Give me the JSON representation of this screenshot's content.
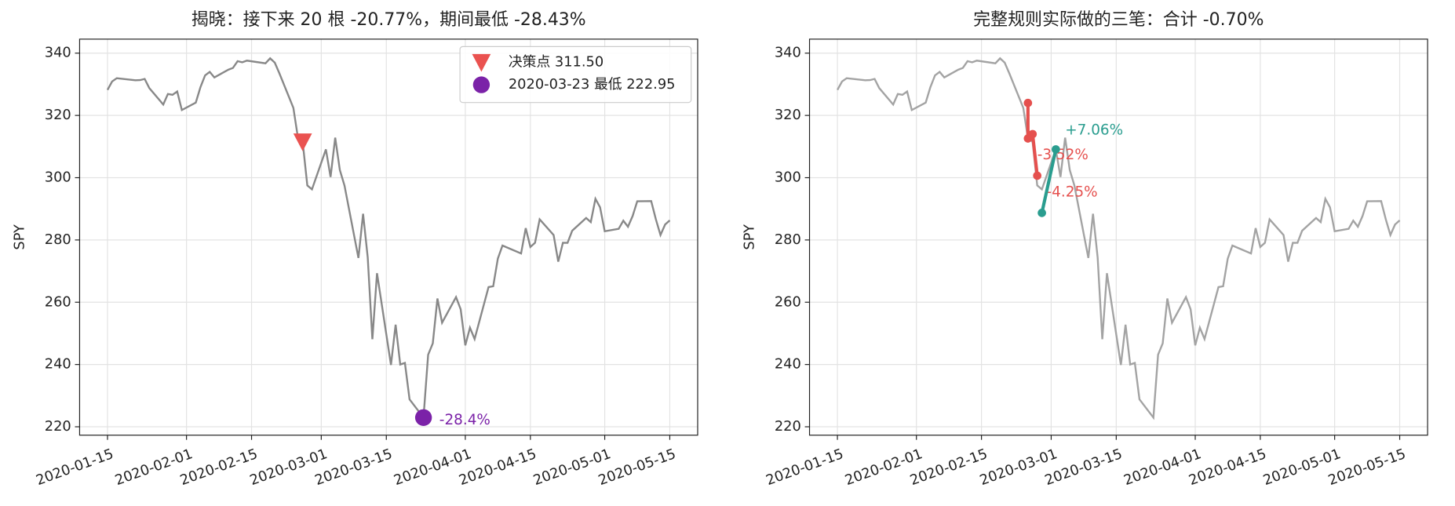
{
  "chart_data": [
    {
      "type": "line",
      "title": "揭晓：接下来 20 根 -20.77%，期间最低 -28.43%",
      "y_label": "SPY",
      "xlim": [
        "2020-01-09",
        "2020-05-21"
      ],
      "xticks": [
        "2020-01-15",
        "2020-02-01",
        "2020-02-15",
        "2020-03-01",
        "2020-03-15",
        "2020-04-01",
        "2020-04-15",
        "2020-05-01",
        "2020-05-15"
      ],
      "ylim": [
        217.3,
        344.5
      ],
      "yticks": [
        220,
        240,
        260,
        280,
        300,
        320,
        340
      ],
      "grid": true,
      "legend": "upper right",
      "series": [
        {
          "color": "#888888",
          "x": [
            "2020-01-15",
            "2020-01-16",
            "2020-01-17",
            "2020-01-21",
            "2020-01-22",
            "2020-01-23",
            "2020-01-24",
            "2020-01-27",
            "2020-01-28",
            "2020-01-29",
            "2020-01-30",
            "2020-01-31",
            "2020-02-03",
            "2020-02-04",
            "2020-02-05",
            "2020-02-06",
            "2020-02-07",
            "2020-02-10",
            "2020-02-11",
            "2020-02-12",
            "2020-02-13",
            "2020-02-14",
            "2020-02-18",
            "2020-02-19",
            "2020-02-20",
            "2020-02-21",
            "2020-02-24",
            "2020-02-25",
            "2020-02-26",
            "2020-02-27",
            "2020-02-28",
            "2020-03-02",
            "2020-03-03",
            "2020-03-04",
            "2020-03-05",
            "2020-03-06",
            "2020-03-09",
            "2020-03-10",
            "2020-03-11",
            "2020-03-12",
            "2020-03-13",
            "2020-03-16",
            "2020-03-17",
            "2020-03-18",
            "2020-03-19",
            "2020-03-20",
            "2020-03-23",
            "2020-03-24",
            "2020-03-25",
            "2020-03-26",
            "2020-03-27",
            "2020-03-30",
            "2020-03-31",
            "2020-04-01",
            "2020-04-02",
            "2020-04-03",
            "2020-04-06",
            "2020-04-07",
            "2020-04-08",
            "2020-04-09",
            "2020-04-13",
            "2020-04-14",
            "2020-04-15",
            "2020-04-16",
            "2020-04-17",
            "2020-04-20",
            "2020-04-21",
            "2020-04-22",
            "2020-04-23",
            "2020-04-24",
            "2020-04-27",
            "2020-04-28",
            "2020-04-29",
            "2020-04-30",
            "2020-05-01",
            "2020-05-04",
            "2020-05-05",
            "2020-05-06",
            "2020-05-07",
            "2020-05-08",
            "2020-05-11",
            "2020-05-12",
            "2020-05-13",
            "2020-05-14",
            "2020-05-15"
          ],
          "values": [
            328.19,
            330.92,
            331.95,
            331.3,
            331.34,
            331.72,
            328.77,
            323.5,
            326.89,
            326.62,
            327.68,
            321.73,
            324.12,
            329.06,
            332.86,
            333.98,
            332.2,
            334.68,
            335.26,
            337.42,
            337.06,
            337.6,
            336.73,
            338.34,
            336.95,
            333.48,
            322.42,
            312.65,
            311.5,
            297.51,
            296.26,
            309.09,
            300.24,
            312.86,
            302.46,
            297.46,
            274.23,
            288.42,
            274.36,
            248.11,
            269.32,
            239.85,
            252.8,
            240.0,
            240.51,
            228.8,
            222.95,
            243.15,
            246.79,
            261.2,
            253.42,
            261.65,
            257.75,
            246.15,
            251.83,
            248.19,
            264.86,
            265.13,
            274.03,
            278.2,
            275.66,
            283.79,
            277.76,
            279.1,
            286.64,
            281.59,
            273.04,
            279.1,
            279.08,
            282.97,
            287.05,
            285.73,
            293.21,
            290.48,
            282.79,
            283.57,
            286.19,
            284.25,
            287.68,
            292.44,
            292.5,
            286.67,
            281.6,
            284.97,
            286.28
          ]
        },
        {
          "name": "决策点 311.50",
          "color": "#ea5250",
          "marker": "triangle-down",
          "x": [
            "2020-02-26"
          ],
          "values": [
            311.5
          ]
        },
        {
          "name": "2020-03-23 最低 222.95",
          "color": "#7b22a8",
          "marker": "circle",
          "x": [
            "2020-03-23"
          ],
          "values": [
            222.95
          ],
          "label": "-28.4%"
        }
      ]
    },
    {
      "type": "line",
      "title": "完整规则实际做的三笔：合计 -0.70%",
      "y_label": "SPY",
      "xlim": [
        "2020-01-09",
        "2020-05-21"
      ],
      "xticks": [
        "2020-01-15",
        "2020-02-01",
        "2020-02-15",
        "2020-03-01",
        "2020-03-15",
        "2020-04-01",
        "2020-04-15",
        "2020-05-01",
        "2020-05-15"
      ],
      "ylim": [
        217.3,
        344.5
      ],
      "yticks": [
        220,
        240,
        260,
        280,
        300,
        320,
        340
      ],
      "grid": true,
      "series": [
        {
          "color": "#a3a3a3",
          "x": [
            "2020-01-15",
            "2020-01-16",
            "2020-01-17",
            "2020-01-21",
            "2020-01-22",
            "2020-01-23",
            "2020-01-24",
            "2020-01-27",
            "2020-01-28",
            "2020-01-29",
            "2020-01-30",
            "2020-01-31",
            "2020-02-03",
            "2020-02-04",
            "2020-02-05",
            "2020-02-06",
            "2020-02-07",
            "2020-02-10",
            "2020-02-11",
            "2020-02-12",
            "2020-02-13",
            "2020-02-14",
            "2020-02-18",
            "2020-02-19",
            "2020-02-20",
            "2020-02-21",
            "2020-02-24",
            "2020-02-25",
            "2020-02-26",
            "2020-02-27",
            "2020-02-28",
            "2020-03-02",
            "2020-03-03",
            "2020-03-04",
            "2020-03-05",
            "2020-03-06",
            "2020-03-09",
            "2020-03-10",
            "2020-03-11",
            "2020-03-12",
            "2020-03-13",
            "2020-03-16",
            "2020-03-17",
            "2020-03-18",
            "2020-03-19",
            "2020-03-20",
            "2020-03-23",
            "2020-03-24",
            "2020-03-25",
            "2020-03-26",
            "2020-03-27",
            "2020-03-30",
            "2020-03-31",
            "2020-04-01",
            "2020-04-02",
            "2020-04-03",
            "2020-04-06",
            "2020-04-07",
            "2020-04-08",
            "2020-04-09",
            "2020-04-13",
            "2020-04-14",
            "2020-04-15",
            "2020-04-16",
            "2020-04-17",
            "2020-04-20",
            "2020-04-21",
            "2020-04-22",
            "2020-04-23",
            "2020-04-24",
            "2020-04-27",
            "2020-04-28",
            "2020-04-29",
            "2020-04-30",
            "2020-05-01",
            "2020-05-04",
            "2020-05-05",
            "2020-05-06",
            "2020-05-07",
            "2020-05-08",
            "2020-05-11",
            "2020-05-12",
            "2020-05-13",
            "2020-05-14",
            "2020-05-15"
          ],
          "values": [
            328.19,
            330.92,
            331.95,
            331.3,
            331.34,
            331.72,
            328.77,
            323.5,
            326.89,
            326.62,
            327.68,
            321.73,
            324.12,
            329.06,
            332.86,
            333.98,
            332.2,
            334.68,
            335.26,
            337.42,
            337.06,
            337.6,
            336.73,
            338.34,
            336.95,
            333.48,
            322.42,
            312.65,
            311.5,
            297.51,
            296.26,
            309.09,
            300.24,
            312.86,
            302.46,
            297.46,
            274.23,
            288.42,
            274.36,
            248.11,
            269.32,
            239.85,
            252.8,
            240.0,
            240.51,
            228.8,
            222.95,
            243.15,
            246.79,
            261.2,
            253.42,
            261.65,
            257.75,
            246.15,
            251.83,
            248.19,
            264.86,
            265.13,
            274.03,
            278.2,
            275.66,
            283.79,
            277.76,
            279.1,
            286.64,
            281.59,
            273.04,
            279.1,
            279.08,
            282.97,
            287.05,
            285.73,
            293.21,
            290.48,
            282.79,
            283.57,
            286.19,
            284.25,
            287.68,
            292.44,
            292.5,
            286.67,
            281.6,
            284.97,
            286.28
          ]
        },
        {
          "color": "#e5504e",
          "marker": "dot",
          "x": [
            "2020-02-25",
            "2020-02-25"
          ],
          "values": [
            324.0,
            312.6
          ],
          "label": "-3.52%"
        },
        {
          "color": "#e5504e",
          "marker": "dot",
          "x": [
            "2020-02-26",
            "2020-02-27"
          ],
          "values": [
            314.0,
            300.65
          ],
          "label": "-4.25%"
        },
        {
          "color": "#2a9d8f",
          "marker": "dot",
          "x": [
            "2020-02-28",
            "2020-03-02"
          ],
          "values": [
            288.7,
            309.09
          ],
          "label": "+7.06%"
        }
      ]
    }
  ]
}
